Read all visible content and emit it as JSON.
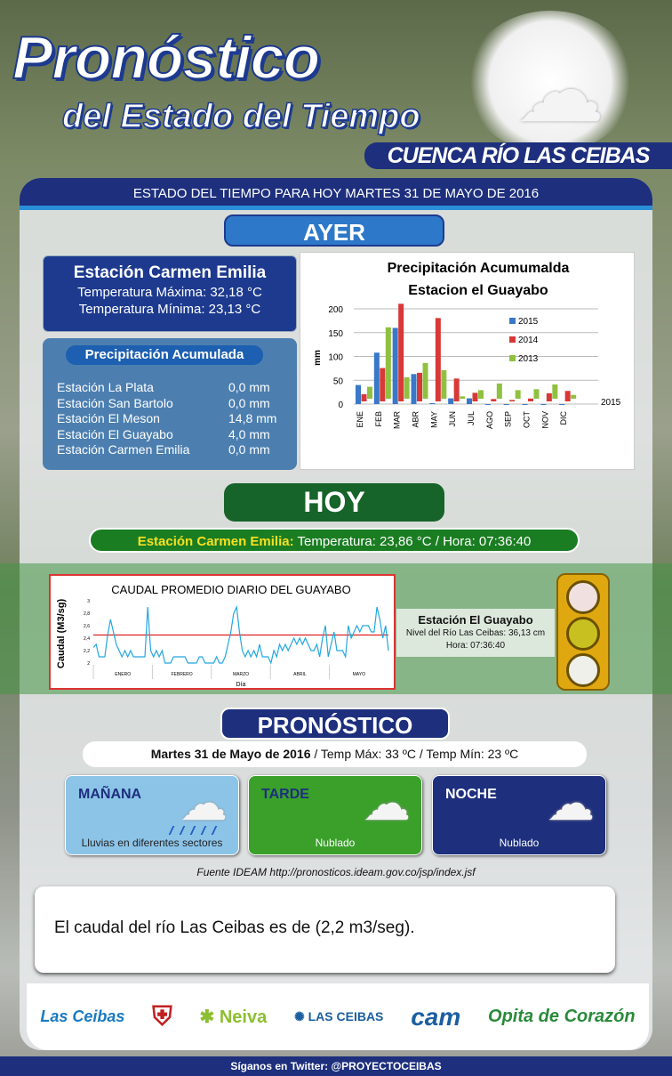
{
  "header": {
    "title": "Pronóstico",
    "subtitle": "del Estado del Tiempo",
    "region": "CUENCA RÍO LAS CEIBAS",
    "date_bar": "ESTADO DEL TIEMPO  PARA HOY  MARTES 31 DE MAYO  DE 2016"
  },
  "ayer": {
    "label": "AYER",
    "carmen": {
      "title": "Estación Carmen Emilia",
      "tmax": "Temperatura  Máxima: 32,18 °C",
      "tmin": "Temperatura  Mínima: 23,13 °C"
    },
    "precip": {
      "title": "Precipitación  Acumulada",
      "rows": [
        {
          "station": "Estación  La Plata",
          "value": "0,0 mm"
        },
        {
          "station": "Estación San Bartolo",
          "value": "0,0 mm"
        },
        {
          "station": "Estación El Meson",
          "value": "14,8 mm"
        },
        {
          "station": "Estación El Guayabo",
          "value": "4,0 mm"
        },
        {
          "station": "Estación Carmen Emilia",
          "value": "0,0 mm"
        }
      ]
    }
  },
  "hoy": {
    "label": "HOY",
    "station_label": "Estación Carmen Emilia:",
    "reading": " Temperatura:  23,86 °C  / Hora: 07:36:40",
    "guayabo": {
      "title": "Estación  El Guayabo",
      "nivel": "Nivel del Río  Las Ceibas: 36,13 cm",
      "hora": "Hora: 07:36:40"
    },
    "semaforo_colors": [
      "#f0e0e0",
      "#c8c020",
      "#f0f0ea"
    ]
  },
  "pronostico": {
    "label": "PRONÓSTICO",
    "fecha": "Martes 31 de Mayo de 2016",
    "temps": " / Temp Máx:  33 ºC    /    Temp Mín:  23 ºC",
    "periods": [
      {
        "name": "MAÑANA",
        "desc": "Lluvias  en diferentes  sectores",
        "icon": "rain-cloud-icon",
        "color": "#8cc4e8"
      },
      {
        "name": "TARDE",
        "desc": "Nublado",
        "icon": "cloud-icon",
        "color": "#3aa02a"
      },
      {
        "name": "NOCHE",
        "desc": "Nublado",
        "icon": "cloud-icon",
        "color": "#1d2f7d"
      }
    ]
  },
  "fuente": "Fuente IDEAM  http://pronosticos.ideam.gov.co/jsp/index.jsf",
  "message": "El caudal del río Las Ceibas es de  (2,2 m3/seg).",
  "logos": [
    "Las Ceibas",
    "Neiva",
    "LAS CEIBAS",
    "cam",
    "Opita de Corazón"
  ],
  "footer": "Síganos en Twitter: @PROYECTOCEIBAS",
  "chart_data": [
    {
      "type": "bar",
      "title": "Precipitación Acumumalda Estacion el Guayabo",
      "ylabel": "mm",
      "ylim": [
        0,
        200
      ],
      "yticks": [
        0,
        50,
        100,
        150,
        200
      ],
      "legend": "right",
      "depth_label": "2015",
      "categories": [
        "ENE",
        "FEB",
        "MAR",
        "ABR",
        "MAY",
        "JUN",
        "JUL",
        "AGO",
        "SEP",
        "OCT",
        "NOV",
        "DIC"
      ],
      "series": [
        {
          "name": "2015",
          "color": "#3a78c8",
          "values": [
            40,
            108,
            160,
            63,
            2,
            12,
            12,
            0,
            0,
            0,
            0,
            0
          ]
        },
        {
          "name": "2014",
          "color": "#d83838",
          "values": [
            15,
            70,
            205,
            60,
            175,
            48,
            18,
            5,
            3,
            6,
            17,
            22
          ]
        },
        {
          "name": "2013",
          "color": "#90c040",
          "values": [
            25,
            150,
            45,
            75,
            60,
            5,
            18,
            32,
            18,
            20,
            30,
            8
          ]
        }
      ]
    },
    {
      "type": "line",
      "title": "CAUDAL PROMEDIO DIARIO DEL GUAYABO",
      "ylabel": "Caudal (M3/sg)",
      "xlabel": "Día",
      "ylim": [
        2,
        3
      ],
      "yticks": [
        "2",
        "2,2",
        "2,4",
        "2,6",
        "2,8",
        "3"
      ],
      "months": [
        "ENERO",
        "FEBRERO",
        "MARZO",
        "ABRIL",
        "MAYO"
      ],
      "reference": 2.45,
      "line_color": "#22a8e0",
      "reference_color": "#e02020",
      "values": [
        2.25,
        2.3,
        2.1,
        2.1,
        2.1,
        2.45,
        2.7,
        2.5,
        2.3,
        2.2,
        2.1,
        2.2,
        2.1,
        2.2,
        2.1,
        2.1,
        2.1,
        2.1,
        2.1,
        2.9,
        2.2,
        2.1,
        2.2,
        2.1,
        2.2,
        2.0,
        2.0,
        2.0,
        2.1,
        2.1,
        2.1,
        2.1,
        2.1,
        2.0,
        2.0,
        2.0,
        2.0,
        2.1,
        2.1,
        2.0,
        2.0,
        2.0,
        2.0,
        2.1,
        2.0,
        2.0,
        2.1,
        2.3,
        2.5,
        2.8,
        2.9,
        2.5,
        2.2,
        2.1,
        2.2,
        2.1,
        2.2,
        2.1,
        2.3,
        2.1,
        2.1,
        2.1,
        2.0,
        2.2,
        2.1,
        2.3,
        2.2,
        2.3,
        2.2,
        2.3,
        2.4,
        2.3,
        2.4,
        2.3,
        2.4,
        2.3,
        2.2,
        2.2,
        2.3,
        2.1,
        2.4,
        2.6,
        2.1,
        2.3,
        2.5,
        2.2,
        2.2,
        2.2,
        2.1,
        2.6,
        2.4,
        2.5,
        2.6,
        2.5,
        2.6,
        2.6,
        2.6,
        2.5,
        2.5,
        2.9,
        2.7,
        2.4,
        2.6,
        2.2
      ]
    }
  ]
}
